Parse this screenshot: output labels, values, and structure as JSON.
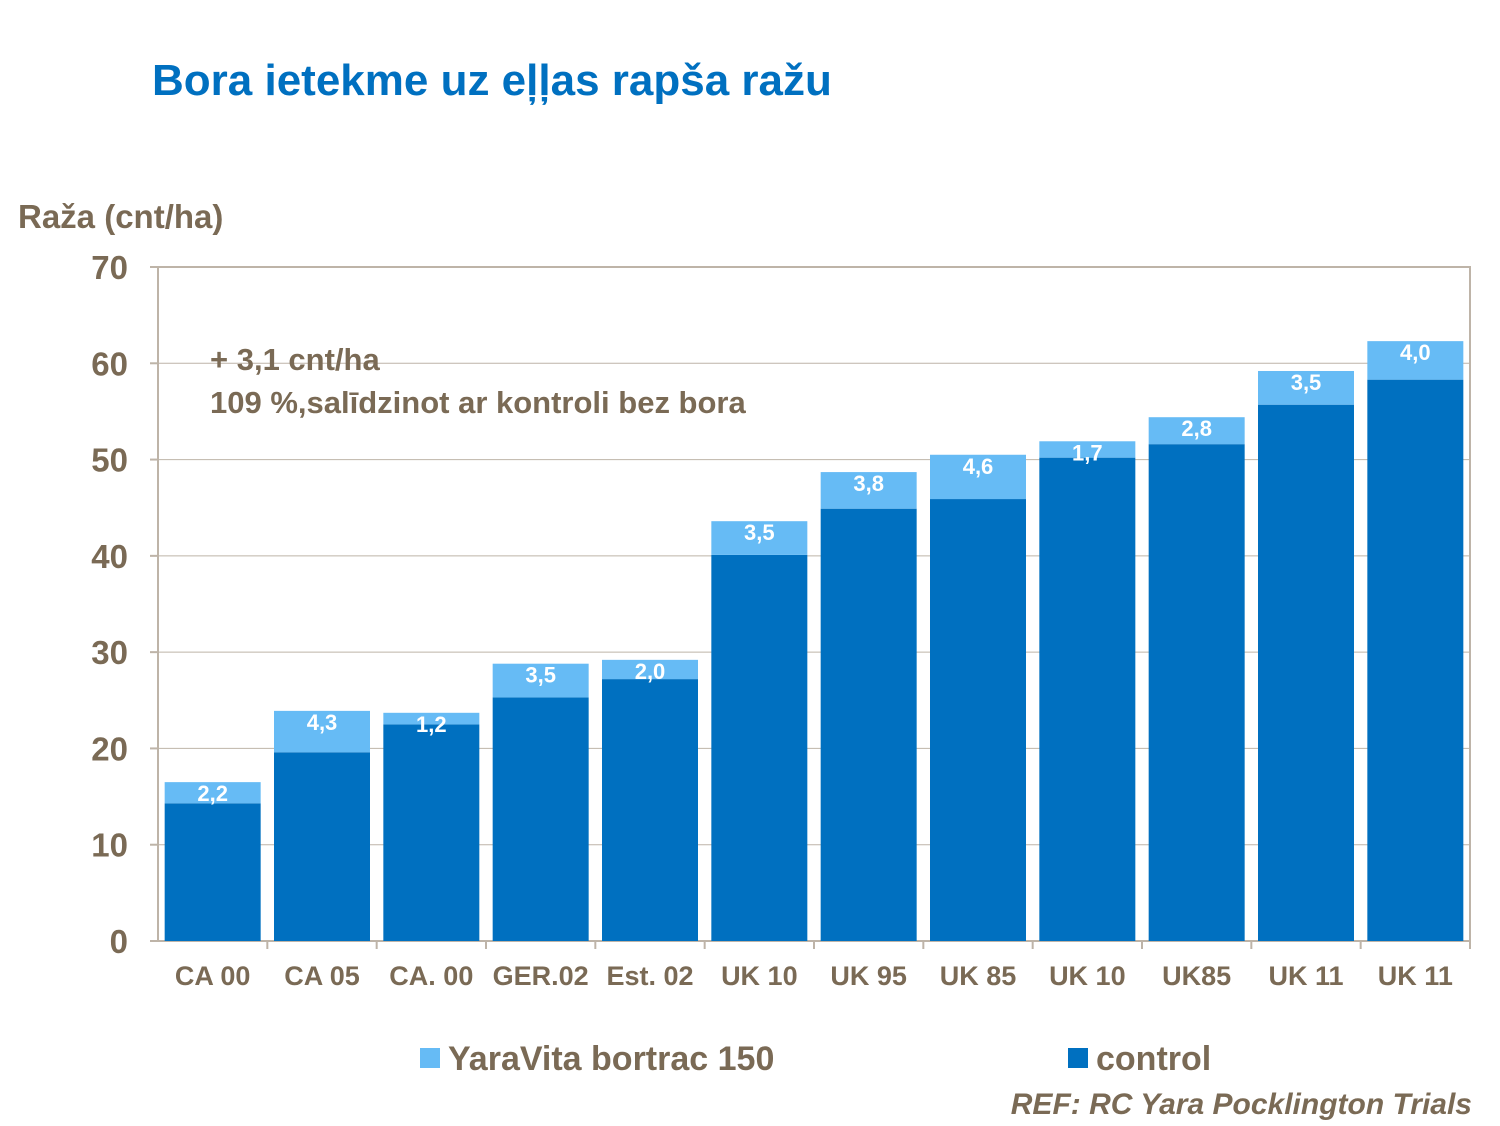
{
  "title": "Bora ietekme uz eļļas rapša ražu",
  "reference": "REF: RC Yara Pocklington  Trials",
  "chart_data": {
    "type": "bar",
    "stacked": true,
    "title": "Bora ietekme uz eļļas rapša ražu",
    "ylabel": "Raža (cnt/ha)",
    "xlabel": "",
    "ylim": [
      0,
      70
    ],
    "yticks": [
      0,
      10,
      20,
      30,
      40,
      50,
      60,
      70
    ],
    "grid": true,
    "legend_position": "bottom",
    "categories": [
      "CA 00",
      "CA  05",
      "CA. 00",
      "GER.02",
      "Est. 02",
      "UK 10",
      "UK 95",
      "UK 85",
      "UK 10",
      "UK85",
      "UK 11",
      "UK 11"
    ],
    "series": [
      {
        "name": "control",
        "color": "#0070C0",
        "values": [
          14.3,
          19.6,
          22.5,
          25.3,
          27.2,
          40.1,
          44.9,
          45.9,
          50.2,
          51.6,
          55.7,
          58.3
        ]
      },
      {
        "name": "YaraVita bortrac 150",
        "color": "#66BBF5",
        "values": [
          2.2,
          4.3,
          1.2,
          3.5,
          2.0,
          3.5,
          3.8,
          4.6,
          1.7,
          2.8,
          3.5,
          4.0
        ],
        "labels": [
          "2,2",
          "4,3",
          "1,2",
          "3,5",
          "2,0",
          "3,5",
          "3,8",
          "4,6",
          "1,7",
          "2,8",
          "3,5",
          "4,0"
        ]
      }
    ],
    "annotations": [
      "+ 3,1 cnt/ha",
      "109 %,salīdzinot ar  kontroli bez bora"
    ]
  }
}
